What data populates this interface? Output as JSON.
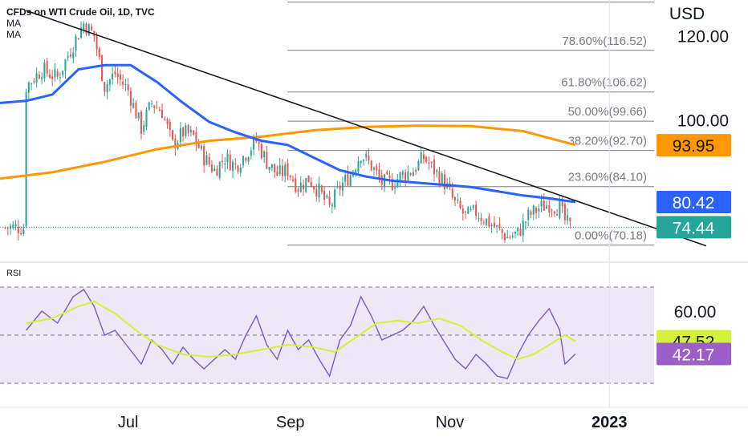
{
  "legend": {
    "title": "CFDs on WTI Crude Oil, 1D, TVC",
    "ma1": "MA",
    "ma2": "MA"
  },
  "rsi_panel": {
    "title": "RSI"
  },
  "colors": {
    "up": "#26a69a",
    "down": "#ef5350",
    "ma_fast": "#2962ff",
    "ma_slow": "#ff9800",
    "trendline": "#131722",
    "fib": "#787b86",
    "rsi": "#7e57c2",
    "rsi_ma": "#d4f03a",
    "rsi_band": "#ede7f6",
    "current_price": "#26a69a"
  },
  "chart_data": [
    {
      "type": "candlestick",
      "title": "CFDs on WTI Crude Oil, 1D, TVC",
      "currency_label": "USD",
      "x_tick_labels": [
        "Jul",
        "Sep",
        "Nov",
        "2023"
      ],
      "x_tick_days": [
        39,
        101,
        162,
        223
      ],
      "y_tick_labels": [
        "120.00",
        "100.00"
      ],
      "y_tick_values": [
        120,
        100
      ],
      "ylim": [
        66.5,
        128.5
      ],
      "xlim": [
        -10,
        276
      ],
      "price_series": [
        {
          "day": 0,
          "price": 108
        },
        {
          "day": 6,
          "price": 112
        },
        {
          "day": 12,
          "price": 110
        },
        {
          "day": 18,
          "price": 118
        },
        {
          "day": 22,
          "price": 123
        },
        {
          "day": 26,
          "price": 120
        },
        {
          "day": 30,
          "price": 108
        },
        {
          "day": 34,
          "price": 111
        },
        {
          "day": 39,
          "price": 107
        },
        {
          "day": 44,
          "price": 98
        },
        {
          "day": 48,
          "price": 104
        },
        {
          "day": 52,
          "price": 102
        },
        {
          "day": 56,
          "price": 94
        },
        {
          "day": 60,
          "price": 97
        },
        {
          "day": 64,
          "price": 96
        },
        {
          "day": 68,
          "price": 91
        },
        {
          "day": 72,
          "price": 88
        },
        {
          "day": 76,
          "price": 91
        },
        {
          "day": 80,
          "price": 89
        },
        {
          "day": 84,
          "price": 92
        },
        {
          "day": 88,
          "price": 95
        },
        {
          "day": 92,
          "price": 90
        },
        {
          "day": 96,
          "price": 87
        },
        {
          "day": 100,
          "price": 88
        },
        {
          "day": 104,
          "price": 84
        },
        {
          "day": 108,
          "price": 86
        },
        {
          "day": 112,
          "price": 83
        },
        {
          "day": 116,
          "price": 79
        },
        {
          "day": 120,
          "price": 84
        },
        {
          "day": 124,
          "price": 87
        },
        {
          "day": 128,
          "price": 92
        },
        {
          "day": 132,
          "price": 89
        },
        {
          "day": 136,
          "price": 85
        },
        {
          "day": 140,
          "price": 85
        },
        {
          "day": 144,
          "price": 87
        },
        {
          "day": 148,
          "price": 88
        },
        {
          "day": 152,
          "price": 91
        },
        {
          "day": 156,
          "price": 88
        },
        {
          "day": 160,
          "price": 85
        },
        {
          "day": 164,
          "price": 80
        },
        {
          "day": 168,
          "price": 77
        },
        {
          "day": 172,
          "price": 78
        },
        {
          "day": 176,
          "price": 76
        },
        {
          "day": 180,
          "price": 74
        },
        {
          "day": 184,
          "price": 72
        },
        {
          "day": 188,
          "price": 73
        },
        {
          "day": 192,
          "price": 77
        },
        {
          "day": 196,
          "price": 79
        },
        {
          "day": 200,
          "price": 80
        },
        {
          "day": 204,
          "price": 79
        },
        {
          "day": 206,
          "price": 76
        },
        {
          "day": 208,
          "price": 74.4
        }
      ],
      "ma_fast": {
        "label": "MA",
        "last_value": 80.42,
        "points": [
          {
            "day": -10,
            "value": 104
          },
          {
            "day": 0,
            "value": 104.5
          },
          {
            "day": 10,
            "value": 106
          },
          {
            "day": 20,
            "value": 112
          },
          {
            "day": 30,
            "value": 113
          },
          {
            "day": 40,
            "value": 113
          },
          {
            "day": 50,
            "value": 109
          },
          {
            "day": 60,
            "value": 104
          },
          {
            "day": 70,
            "value": 99.5
          },
          {
            "day": 80,
            "value": 97
          },
          {
            "day": 90,
            "value": 95
          },
          {
            "day": 100,
            "value": 94
          },
          {
            "day": 110,
            "value": 91
          },
          {
            "day": 120,
            "value": 88
          },
          {
            "day": 130,
            "value": 86.5
          },
          {
            "day": 140,
            "value": 85.5
          },
          {
            "day": 150,
            "value": 85
          },
          {
            "day": 160,
            "value": 84.5
          },
          {
            "day": 170,
            "value": 84
          },
          {
            "day": 180,
            "value": 83
          },
          {
            "day": 190,
            "value": 82
          },
          {
            "day": 200,
            "value": 81.3
          },
          {
            "day": 210,
            "value": 80.42
          }
        ]
      },
      "ma_slow": {
        "label": "MA",
        "last_value": 93.95,
        "points": [
          {
            "day": -10,
            "value": 86
          },
          {
            "day": 10,
            "value": 87.5
          },
          {
            "day": 30,
            "value": 90
          },
          {
            "day": 50,
            "value": 93
          },
          {
            "day": 70,
            "value": 95
          },
          {
            "day": 90,
            "value": 96
          },
          {
            "day": 110,
            "value": 97.5
          },
          {
            "day": 130,
            "value": 98.3
          },
          {
            "day": 150,
            "value": 98.6
          },
          {
            "day": 170,
            "value": 98.5
          },
          {
            "day": 190,
            "value": 97.3
          },
          {
            "day": 210,
            "value": 94
          }
        ]
      },
      "trendline": {
        "from": {
          "day": 0,
          "price": 126
        },
        "to": {
          "day": 260,
          "price": 70
        }
      },
      "current_price": 74.44,
      "fibonacci": [
        {
          "label": "0.00%(70.18)",
          "price": 70.18
        },
        {
          "label": "23.60%(84.10)",
          "price": 84.1
        },
        {
          "label": "38.20%(92.70)",
          "price": 92.7
        },
        {
          "label": "50.00%(99.66)",
          "price": 99.66
        },
        {
          "label": "61.80%(106.62)",
          "price": 106.62
        },
        {
          "label": "78.60%(116.52)",
          "price": 116.52
        },
        {
          "label": "",
          "price": 128.0
        }
      ],
      "fib_start_day": 100,
      "price_tags": [
        {
          "text": "93.95",
          "value": 93.95,
          "color": "#ff9800",
          "text_color": "#131722"
        },
        {
          "text": "80.42",
          "value": 80.42,
          "color": "#2962ff",
          "text_color": "#ffffff"
        },
        {
          "text": "74.44",
          "value": 74.44,
          "color": "#26a69a",
          "text_color": "#ffffff"
        }
      ]
    },
    {
      "type": "line",
      "title": "RSI",
      "y_tick_labels": [
        "60.00"
      ],
      "y_tick_values": [
        60
      ],
      "ylim": [
        26,
        74
      ],
      "band": [
        30,
        70
      ],
      "midline": 50,
      "series": [
        {
          "name": "",
          "points": [
            {
              "day": 0,
              "value": 52
            },
            {
              "day": 6,
              "value": 60
            },
            {
              "day": 12,
              "value": 55
            },
            {
              "day": 18,
              "value": 66
            },
            {
              "day": 22,
              "value": 69
            },
            {
              "day": 26,
              "value": 62
            },
            {
              "day": 30,
              "value": 50
            },
            {
              "day": 34,
              "value": 52
            },
            {
              "day": 39,
              "value": 45
            },
            {
              "day": 44,
              "value": 38
            },
            {
              "day": 48,
              "value": 48
            },
            {
              "day": 52,
              "value": 44
            },
            {
              "day": 56,
              "value": 38
            },
            {
              "day": 60,
              "value": 45
            },
            {
              "day": 64,
              "value": 40
            },
            {
              "day": 68,
              "value": 36
            },
            {
              "day": 72,
              "value": 40
            },
            {
              "day": 76,
              "value": 44
            },
            {
              "day": 80,
              "value": 40
            },
            {
              "day": 84,
              "value": 50
            },
            {
              "day": 88,
              "value": 58
            },
            {
              "day": 92,
              "value": 46
            },
            {
              "day": 96,
              "value": 40
            },
            {
              "day": 100,
              "value": 52
            },
            {
              "day": 104,
              "value": 44
            },
            {
              "day": 108,
              "value": 48
            },
            {
              "day": 112,
              "value": 40
            },
            {
              "day": 116,
              "value": 33
            },
            {
              "day": 120,
              "value": 48
            },
            {
              "day": 124,
              "value": 54
            },
            {
              "day": 128,
              "value": 66
            },
            {
              "day": 132,
              "value": 58
            },
            {
              "day": 136,
              "value": 48
            },
            {
              "day": 140,
              "value": 50
            },
            {
              "day": 144,
              "value": 52
            },
            {
              "day": 148,
              "value": 56
            },
            {
              "day": 152,
              "value": 62
            },
            {
              "day": 156,
              "value": 54
            },
            {
              "day": 160,
              "value": 47
            },
            {
              "day": 164,
              "value": 40
            },
            {
              "day": 168,
              "value": 36
            },
            {
              "day": 172,
              "value": 42
            },
            {
              "day": 176,
              "value": 38
            },
            {
              "day": 180,
              "value": 33
            },
            {
              "day": 184,
              "value": 32
            },
            {
              "day": 188,
              "value": 42
            },
            {
              "day": 192,
              "value": 50
            },
            {
              "day": 196,
              "value": 56
            },
            {
              "day": 200,
              "value": 61
            },
            {
              "day": 204,
              "value": 52
            },
            {
              "day": 206,
              "value": 38
            },
            {
              "day": 210,
              "value": 42.17
            }
          ],
          "last_value": 42.17
        },
        {
          "name": "",
          "points": [
            {
              "day": 0,
              "value": 55
            },
            {
              "day": 10,
              "value": 57
            },
            {
              "day": 20,
              "value": 62
            },
            {
              "day": 26,
              "value": 64
            },
            {
              "day": 34,
              "value": 59
            },
            {
              "day": 42,
              "value": 52
            },
            {
              "day": 50,
              "value": 46
            },
            {
              "day": 60,
              "value": 42
            },
            {
              "day": 70,
              "value": 41
            },
            {
              "day": 80,
              "value": 42
            },
            {
              "day": 90,
              "value": 44
            },
            {
              "day": 100,
              "value": 46
            },
            {
              "day": 110,
              "value": 45
            },
            {
              "day": 118,
              "value": 43
            },
            {
              "day": 126,
              "value": 49
            },
            {
              "day": 134,
              "value": 55
            },
            {
              "day": 142,
              "value": 56
            },
            {
              "day": 150,
              "value": 55
            },
            {
              "day": 158,
              "value": 57
            },
            {
              "day": 166,
              "value": 54
            },
            {
              "day": 174,
              "value": 48
            },
            {
              "day": 182,
              "value": 43
            },
            {
              "day": 188,
              "value": 40
            },
            {
              "day": 194,
              "value": 42
            },
            {
              "day": 200,
              "value": 46
            },
            {
              "day": 206,
              "value": 50
            },
            {
              "day": 210,
              "value": 47.52
            }
          ],
          "last_value": 47.52
        }
      ],
      "value_tags": [
        {
          "text": "47.52",
          "value": 47.52,
          "color": "#d4f03a",
          "text_color": "#131722"
        },
        {
          "text": "42.17",
          "value": 42.17,
          "color": "#9c5fc9",
          "text_color": "#ffffff"
        }
      ]
    }
  ]
}
